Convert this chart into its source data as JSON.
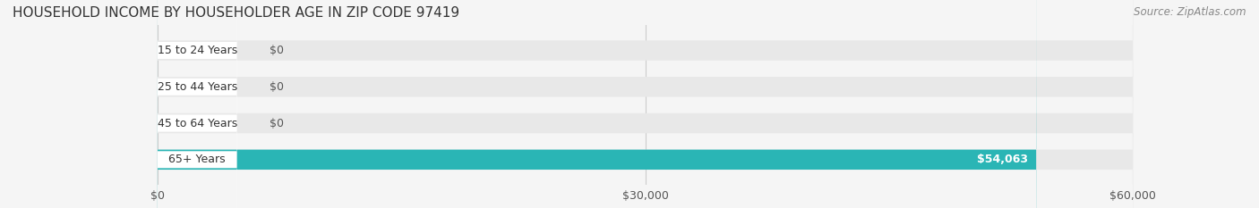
{
  "title": "HOUSEHOLD INCOME BY HOUSEHOLDER AGE IN ZIP CODE 97419",
  "source": "Source: ZipAtlas.com",
  "categories": [
    "15 to 24 Years",
    "25 to 44 Years",
    "45 to 64 Years",
    "65+ Years"
  ],
  "values": [
    0,
    0,
    0,
    54063
  ],
  "bar_colors": [
    "#f4a0a8",
    "#a8b8d8",
    "#c0a8d0",
    "#2ab5b5"
  ],
  "label_colors": [
    "#f4a0a8",
    "#a8b8d8",
    "#c0a8d0",
    "#2ab5b5"
  ],
  "xlim": [
    0,
    60000
  ],
  "xticks": [
    0,
    30000,
    60000
  ],
  "xticklabels": [
    "$0",
    "$30,000",
    "$60,000"
  ],
  "bg_color": "#f5f5f5",
  "bar_bg_color": "#e8e8e8",
  "bar_height": 0.55,
  "value_label_color": "#555555",
  "last_bar_label_color": "#ffffff",
  "title_fontsize": 11,
  "source_fontsize": 8.5,
  "tick_fontsize": 9,
  "label_fontsize": 9
}
